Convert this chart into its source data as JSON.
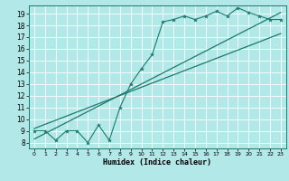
{
  "xlabel": "Humidex (Indice chaleur)",
  "bg_color": "#b2e8e8",
  "line_color": "#1a7a6e",
  "grid_color": "#ffffff",
  "xlim": [
    -0.5,
    23.5
  ],
  "ylim": [
    7.5,
    19.7
  ],
  "xticks": [
    0,
    1,
    2,
    3,
    4,
    5,
    6,
    7,
    8,
    9,
    10,
    11,
    12,
    13,
    14,
    15,
    16,
    17,
    18,
    19,
    20,
    21,
    22,
    23
  ],
  "yticks": [
    8,
    9,
    10,
    11,
    12,
    13,
    14,
    15,
    16,
    17,
    18,
    19
  ],
  "data_x": [
    0,
    1,
    2,
    3,
    4,
    5,
    6,
    7,
    8,
    9,
    10,
    11,
    12,
    13,
    14,
    15,
    16,
    17,
    18,
    19,
    20,
    21,
    22,
    23
  ],
  "data_y": [
    9.0,
    9.0,
    8.2,
    9.0,
    9.0,
    8.0,
    9.5,
    8.2,
    11.0,
    13.0,
    14.3,
    15.5,
    18.3,
    18.5,
    18.8,
    18.5,
    18.8,
    19.2,
    18.8,
    19.5,
    19.1,
    18.8,
    18.5,
    18.5
  ],
  "reg_line1_x": [
    0,
    23
  ],
  "reg_line1_y": [
    8.3,
    19.1
  ],
  "reg_line2_x": [
    0,
    23
  ],
  "reg_line2_y": [
    9.2,
    17.3
  ]
}
